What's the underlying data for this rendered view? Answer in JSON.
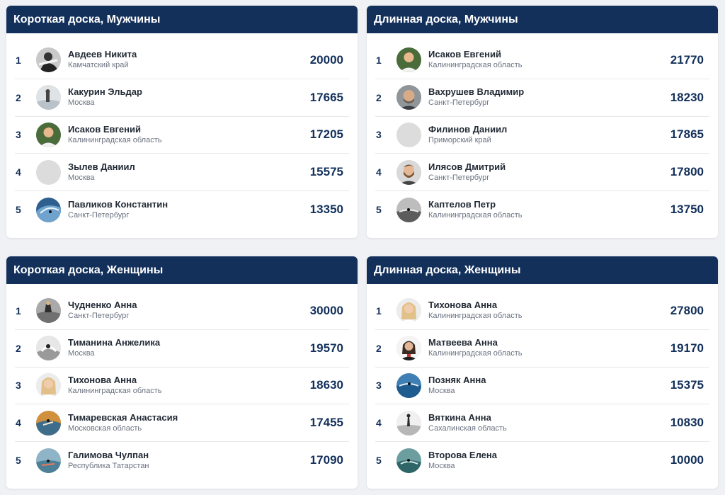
{
  "colors": {
    "header_bg": "#13305b",
    "header_text": "#ffffff",
    "score_text": "#13305b",
    "page_bg": "#eff1f4"
  },
  "boards": [
    {
      "title": "Короткая доска, Мужчины",
      "rows": [
        {
          "rank": "1",
          "name": "Авдеев Никита",
          "region": "Камчатский край",
          "score": "20000",
          "avatar": "photo-bw"
        },
        {
          "rank": "2",
          "name": "Какурин Эльдар",
          "region": "Москва",
          "score": "17665",
          "avatar": "photo-surf-light"
        },
        {
          "rank": "3",
          "name": "Исаков Евгений",
          "region": "Калининградская область",
          "score": "17205",
          "avatar": "photo-portrait"
        },
        {
          "rank": "4",
          "name": "Зылев Даниил",
          "region": "Москва",
          "score": "15575",
          "avatar": "placeholder"
        },
        {
          "rank": "5",
          "name": "Павликов Константин",
          "region": "Санкт-Петербург",
          "score": "13350",
          "avatar": "photo-wave"
        }
      ]
    },
    {
      "title": "Длинная доска, Мужчины",
      "rows": [
        {
          "rank": "1",
          "name": "Исаков Евгений",
          "region": "Калининградская область",
          "score": "21770",
          "avatar": "photo-portrait"
        },
        {
          "rank": "2",
          "name": "Вахрушев Владимир",
          "region": "Санкт-Петербург",
          "score": "18230",
          "avatar": "photo-portrait-gray"
        },
        {
          "rank": "3",
          "name": "Филинов Даниил",
          "region": "Приморский край",
          "score": "17865",
          "avatar": "placeholder"
        },
        {
          "rank": "4",
          "name": "Илясов Дмитрий",
          "region": "Санкт-Петербург",
          "score": "17800",
          "avatar": "photo-portrait-beard"
        },
        {
          "rank": "5",
          "name": "Каптелов Петр",
          "region": "Калининградская область",
          "score": "13750",
          "avatar": "photo-bw-surf"
        }
      ]
    },
    {
      "title": "Короткая доска, Женщины",
      "rows": [
        {
          "rank": "1",
          "name": "Чудненко Анна",
          "region": "Санкт-Петербург",
          "score": "30000",
          "avatar": "photo-surf-gray"
        },
        {
          "rank": "2",
          "name": "Тиманина Анжелика",
          "region": "Москва",
          "score": "19570",
          "avatar": "photo-bw-splash"
        },
        {
          "rank": "3",
          "name": "Тихонова Анна",
          "region": "Калининградская область",
          "score": "18630",
          "avatar": "photo-blonde"
        },
        {
          "rank": "4",
          "name": "Тимаревская Анастасия",
          "region": "Московская область",
          "score": "17455",
          "avatar": "photo-sunset"
        },
        {
          "rank": "5",
          "name": "Галимова Чулпан",
          "region": "Республика Татарстан",
          "score": "17090",
          "avatar": "photo-surf-sea"
        }
      ]
    },
    {
      "title": "Длинная доска, Женщины",
      "rows": [
        {
          "rank": "1",
          "name": "Тихонова Анна",
          "region": "Калининградская область",
          "score": "27800",
          "avatar": "photo-blonde"
        },
        {
          "rank": "2",
          "name": "Матвеева Анна",
          "region": "Калининградская область",
          "score": "19170",
          "avatar": "photo-dark-portrait"
        },
        {
          "rank": "3",
          "name": "Позняк Анна",
          "region": "Москва",
          "score": "15375",
          "avatar": "photo-wave-blue"
        },
        {
          "rank": "4",
          "name": "Вяткина Анна",
          "region": "Сахалинская область",
          "score": "10830",
          "avatar": "photo-bw-light"
        },
        {
          "rank": "5",
          "name": "Второва Елена",
          "region": "Москва",
          "score": "10000",
          "avatar": "photo-surf-teal"
        }
      ]
    }
  ]
}
